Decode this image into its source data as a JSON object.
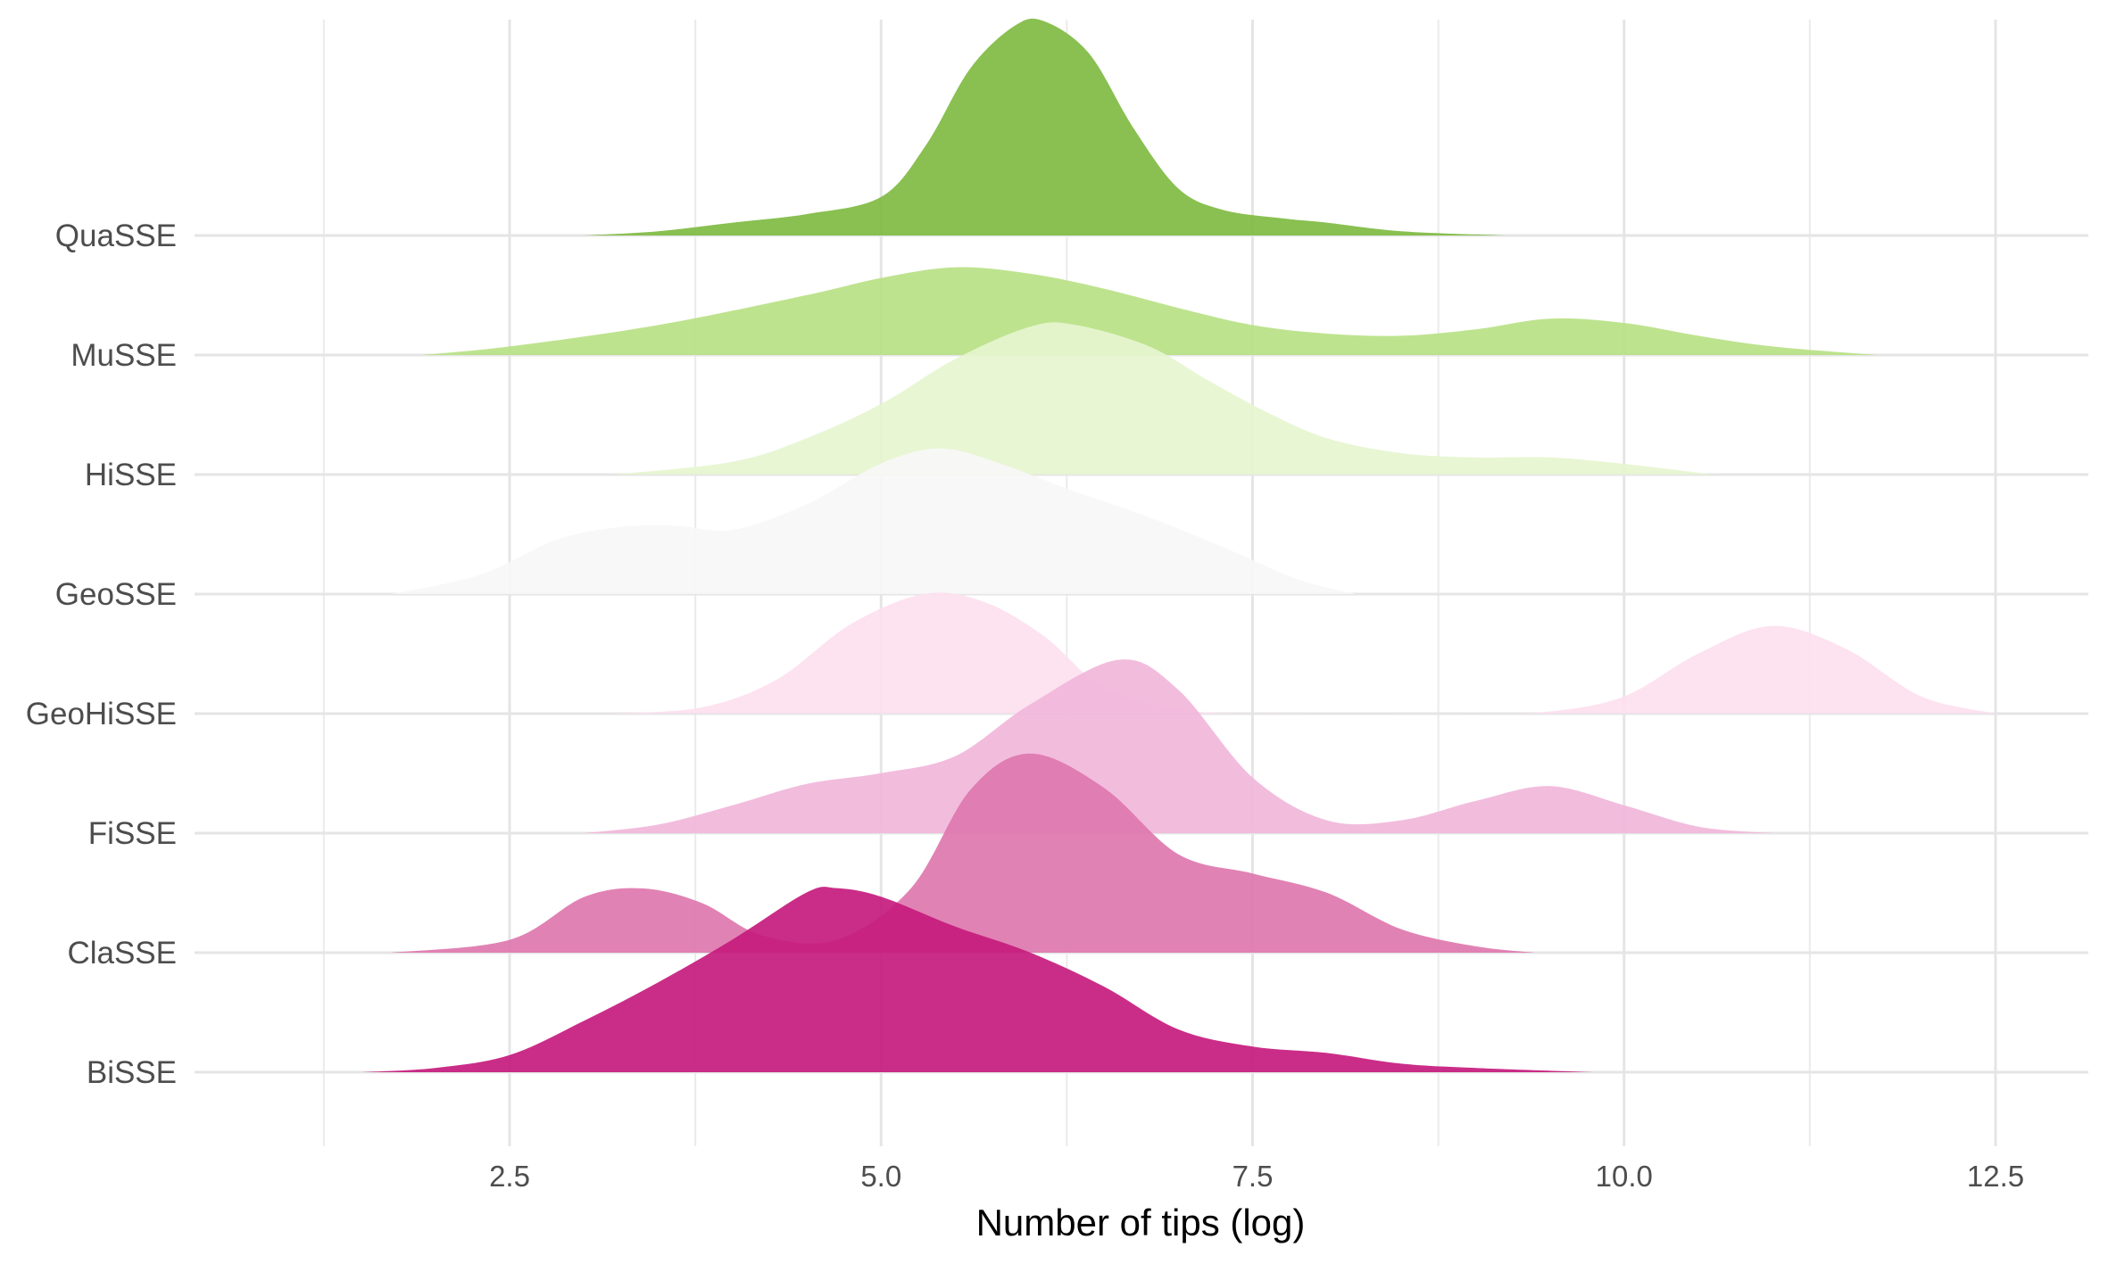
{
  "chart_data": {
    "type": "ridgeline",
    "xlabel": "Number of tips (log)",
    "xlim": [
      0.3,
      13.2
    ],
    "xticks": [
      2.5,
      5.0,
      7.5,
      10.0,
      12.5
    ],
    "xtick_labels": [
      "2.5",
      "5.0",
      "7.5",
      "10.0",
      "12.5"
    ],
    "grid": true,
    "legend": "none",
    "categories": [
      "QuaSSE",
      "MuSSE",
      "HiSSE",
      "GeoSSE",
      "GeoHiSSE",
      "FiSSE",
      "ClaSSE",
      "BiSSE"
    ],
    "series": [
      {
        "name": "QuaSSE",
        "color": "#7fbb42",
        "x": [
          3.0,
          3.5,
          4.0,
          4.5,
          5.0,
          5.3,
          5.6,
          5.9,
          6.1,
          6.4,
          6.7,
          7.0,
          7.3,
          7.7,
          8.0,
          8.5,
          9.2
        ],
        "density": [
          0.0,
          0.02,
          0.06,
          0.1,
          0.18,
          0.42,
          0.78,
          0.98,
          1.0,
          0.85,
          0.5,
          0.22,
          0.12,
          0.08,
          0.06,
          0.02,
          0.0
        ]
      },
      {
        "name": "MuSSE",
        "color": "#b8e186",
        "x": [
          1.9,
          2.5,
          3.5,
          4.5,
          5.0,
          5.5,
          6.0,
          6.5,
          7.0,
          7.5,
          8.0,
          8.5,
          9.0,
          9.5,
          10.0,
          10.5,
          11.0,
          11.7
        ],
        "density": [
          0.0,
          0.04,
          0.14,
          0.28,
          0.36,
          0.41,
          0.38,
          0.31,
          0.22,
          0.14,
          0.1,
          0.09,
          0.12,
          0.17,
          0.15,
          0.09,
          0.04,
          0.0
        ]
      },
      {
        "name": "HiSSE",
        "color": "#e6f5d0",
        "x": [
          3.2,
          4.0,
          4.5,
          5.0,
          5.5,
          6.0,
          6.3,
          6.8,
          7.2,
          7.6,
          8.0,
          8.5,
          9.0,
          9.5,
          10.0,
          10.6
        ],
        "density": [
          0.0,
          0.06,
          0.17,
          0.33,
          0.54,
          0.69,
          0.7,
          0.6,
          0.44,
          0.29,
          0.17,
          0.1,
          0.08,
          0.08,
          0.05,
          0.0
        ]
      },
      {
        "name": "GeoSSE",
        "color": "#f7f7f7",
        "x": [
          1.7,
          2.3,
          2.8,
          3.2,
          3.6,
          4.0,
          4.5,
          5.0,
          5.4,
          5.8,
          6.3,
          6.8,
          7.3,
          7.8,
          8.2
        ],
        "density": [
          0.0,
          0.09,
          0.25,
          0.31,
          0.32,
          0.3,
          0.42,
          0.61,
          0.68,
          0.61,
          0.48,
          0.36,
          0.22,
          0.07,
          0.0
        ]
      },
      {
        "name": "GeoHiSSE",
        "color": "#fde0ef",
        "x": [
          3.2,
          3.8,
          4.3,
          4.8,
          5.3,
          5.7,
          6.1,
          6.5,
          7.0,
          7.5,
          8.0,
          9.0,
          9.5,
          10.0,
          10.5,
          11.0,
          11.5,
          12.0,
          12.5
        ],
        "density": [
          0.0,
          0.03,
          0.16,
          0.42,
          0.56,
          0.52,
          0.36,
          0.12,
          0.02,
          0.0,
          0.0,
          0.0,
          0.01,
          0.08,
          0.28,
          0.41,
          0.3,
          0.08,
          0.0
        ]
      },
      {
        "name": "FiSSE",
        "color": "#f1b6da",
        "x": [
          3.0,
          3.5,
          4.0,
          4.5,
          5.0,
          5.5,
          6.0,
          6.6,
          7.0,
          7.5,
          8.0,
          8.5,
          9.0,
          9.5,
          10.0,
          10.5,
          11.0
        ],
        "density": [
          0.0,
          0.04,
          0.13,
          0.23,
          0.28,
          0.36,
          0.6,
          0.81,
          0.67,
          0.26,
          0.06,
          0.06,
          0.15,
          0.22,
          0.13,
          0.03,
          0.0
        ]
      },
      {
        "name": "ClaSSE",
        "color": "#de77ae",
        "x": [
          1.7,
          2.5,
          3.0,
          3.4,
          3.8,
          4.2,
          4.7,
          5.2,
          5.6,
          6.0,
          6.5,
          7.0,
          7.5,
          8.0,
          8.5,
          9.0,
          9.4
        ],
        "density": [
          0.0,
          0.06,
          0.26,
          0.3,
          0.23,
          0.08,
          0.06,
          0.3,
          0.76,
          0.93,
          0.77,
          0.46,
          0.37,
          0.28,
          0.11,
          0.03,
          0.0
        ]
      },
      {
        "name": "BiSSE",
        "color": "#c51b7d",
        "x": [
          1.5,
          2.0,
          2.5,
          3.0,
          3.5,
          4.0,
          4.5,
          4.7,
          5.0,
          5.5,
          6.0,
          6.5,
          7.0,
          7.5,
          8.0,
          8.5,
          9.0,
          9.8
        ],
        "density": [
          0.0,
          0.02,
          0.08,
          0.24,
          0.42,
          0.62,
          0.84,
          0.86,
          0.82,
          0.68,
          0.56,
          0.4,
          0.2,
          0.12,
          0.09,
          0.04,
          0.02,
          0.0
        ]
      }
    ]
  }
}
